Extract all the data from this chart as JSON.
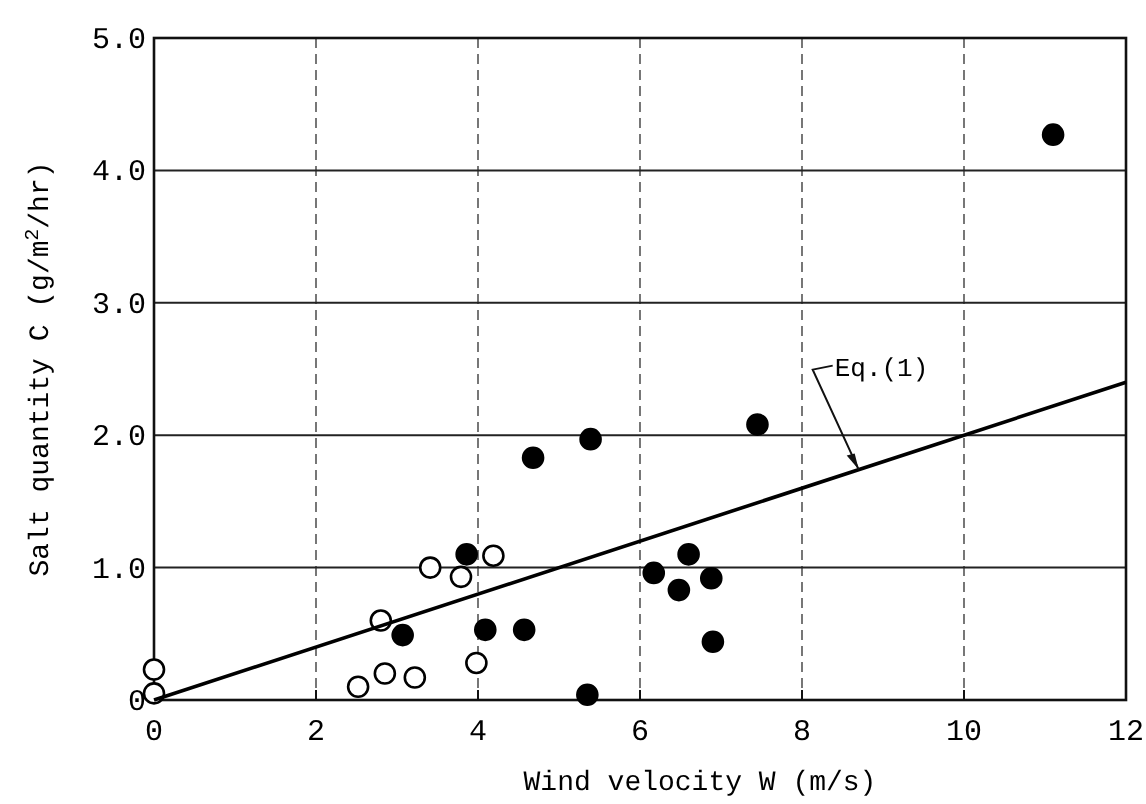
{
  "chart_data": {
    "type": "scatter",
    "xlabel": "Wind velocity  W (m/s)",
    "ylabel": "Salt quantity  C (g/m$^{2}$/hr)",
    "xlim": [
      0,
      12
    ],
    "ylim": [
      0,
      5
    ],
    "xticks": [
      0,
      2,
      4,
      6,
      8,
      10,
      12
    ],
    "yticks": [
      0,
      {
        "value": 1,
        "label": "1.0"
      },
      {
        "value": 2,
        "label": "2.0"
      },
      {
        "value": 3,
        "label": "3.0"
      },
      {
        "value": 4,
        "label": "4.0"
      },
      {
        "value": 5,
        "label": "5.0"
      }
    ],
    "grid": true,
    "marker": "circle",
    "series": [
      {
        "color": "#ffffff",
        "x": [
          0,
          0,
          2.52,
          2.8,
          2.85,
          3.22,
          3.41,
          3.79,
          3.98,
          4.19
        ],
        "values": [
          0.23,
          0.05,
          0.1,
          0.6,
          0.2,
          0.17,
          1.0,
          0.93,
          0.28,
          1.09
        ]
      },
      {
        "color": "#000000",
        "x": [
          3.07,
          3.86,
          4.09,
          4.57,
          4.68,
          5.39,
          5.35,
          6.17,
          6.6,
          6.48,
          6.88,
          6.9,
          7.45,
          11.1
        ],
        "values": [
          0.49,
          1.1,
          0.53,
          0.53,
          1.83,
          1.97,
          0.04,
          0.96,
          1.1,
          0.83,
          0.92,
          0.44,
          2.08,
          4.27
        ]
      },
      {
        "type": "line",
        "color": "#000000",
        "marker": "none",
        "x": [
          0,
          12
        ],
        "values": [
          0,
          2.4
        ]
      }
    ],
    "annotations": [
      {
        "text": "Eq.(1)",
        "x": 8.7,
        "y": 1.74
      }
    ]
  }
}
